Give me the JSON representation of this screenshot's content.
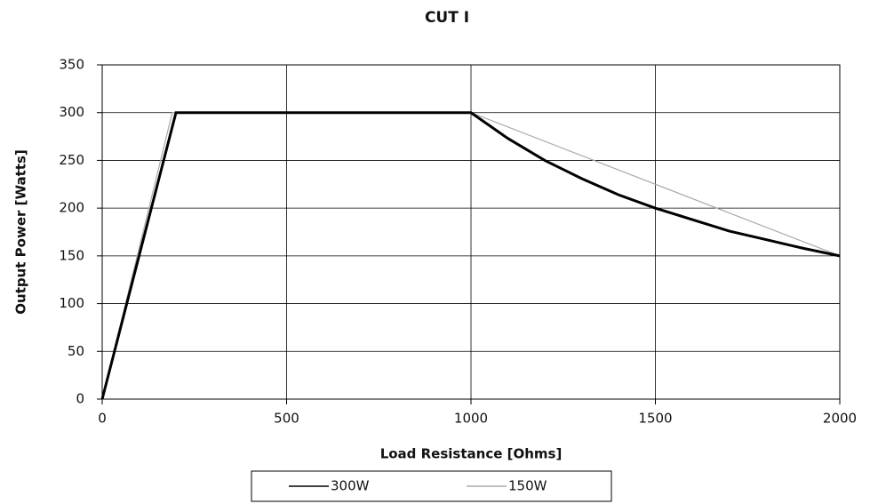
{
  "chart_data": {
    "type": "line",
    "title": "CUT I",
    "x_label": "Load Resistance [Ohms]",
    "y_label": "Output Power [Watts]",
    "series": [
      {
        "name": "300W",
        "color": "#000000",
        "width": 3,
        "x": [
          0,
          200,
          1000,
          1100,
          1200,
          1300,
          1400,
          1500,
          1600,
          1700,
          1800,
          1900,
          2000
        ],
        "values": [
          0,
          300,
          300,
          273,
          250,
          231,
          214,
          200,
          188,
          176,
          167,
          158,
          150
        ]
      },
      {
        "name": "150W",
        "color": "#aaaaaa",
        "width": 1.2,
        "x": [
          0,
          190,
          1000,
          2000
        ],
        "values": [
          0,
          300,
          300,
          150
        ]
      }
    ],
    "xlim": [
      0,
      2000
    ],
    "xticks": [
      0,
      500,
      1000,
      1500,
      2000
    ],
    "ylim": [
      0,
      350
    ],
    "yticks": [
      0,
      50,
      100,
      150,
      200,
      250,
      300,
      350
    ],
    "grid": true,
    "legend": "bottom"
  }
}
